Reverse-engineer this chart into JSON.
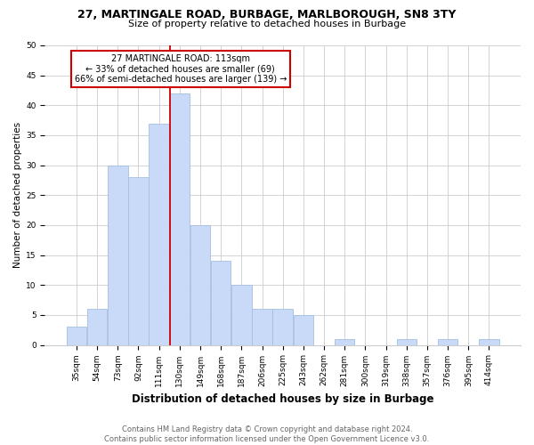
{
  "title": "27, MARTINGALE ROAD, BURBAGE, MARLBOROUGH, SN8 3TY",
  "subtitle": "Size of property relative to detached houses in Burbage",
  "xlabel": "Distribution of detached houses by size in Burbage",
  "ylabel": "Number of detached properties",
  "categories": [
    "35sqm",
    "54sqm",
    "73sqm",
    "92sqm",
    "111sqm",
    "130sqm",
    "149sqm",
    "168sqm",
    "187sqm",
    "206sqm",
    "225sqm",
    "243sqm",
    "262sqm",
    "281sqm",
    "300sqm",
    "319sqm",
    "338sqm",
    "357sqm",
    "376sqm",
    "395sqm",
    "414sqm"
  ],
  "values": [
    3,
    6,
    30,
    28,
    37,
    42,
    20,
    14,
    10,
    6,
    6,
    5,
    0,
    1,
    0,
    0,
    1,
    0,
    1,
    0,
    1
  ],
  "bar_color": "#c9daf8",
  "bar_edge_color": "#a4bfe0",
  "property_label": "27 MARTINGALE ROAD: 113sqm",
  "annotation_line1": "← 33% of detached houses are smaller (69)",
  "annotation_line2": "66% of semi-detached houses are larger (139) →",
  "vline_color": "#cc0000",
  "annotation_box_color": "#ffffff",
  "annotation_box_edge": "#cc0000",
  "ylim": [
    0,
    50
  ],
  "yticks": [
    0,
    5,
    10,
    15,
    20,
    25,
    30,
    35,
    40,
    45,
    50
  ],
  "footer": "Contains HM Land Registry data © Crown copyright and database right 2024.\nContains public sector information licensed under the Open Government Licence v3.0.",
  "background_color": "#ffffff",
  "grid_color": "#cccccc",
  "title_fontsize": 9,
  "subtitle_fontsize": 8,
  "xlabel_fontsize": 8.5,
  "ylabel_fontsize": 7.5,
  "tick_fontsize": 6.5,
  "annotation_fontsize": 7,
  "footer_fontsize": 6
}
